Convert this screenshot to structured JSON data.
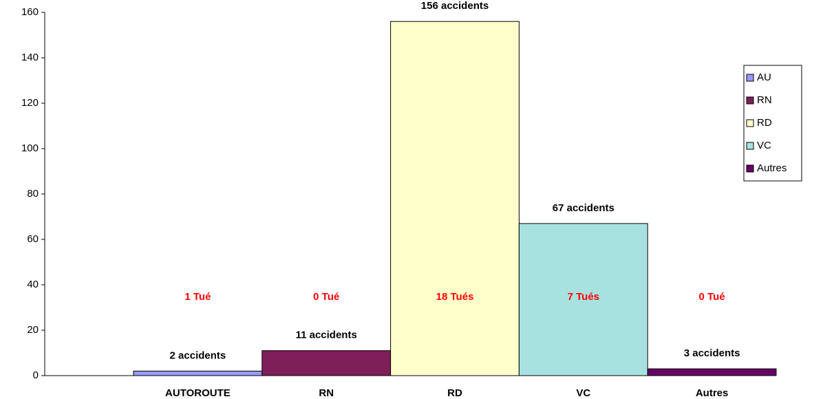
{
  "chart_data": {
    "type": "bar",
    "categories": [
      "AUTOROUTE",
      "RN",
      "RD",
      "VC",
      "Autres"
    ],
    "values": [
      2,
      11,
      156,
      67,
      3
    ],
    "value_labels": [
      "2 accidents",
      "11 accidents",
      "156 accidents",
      "67 accidents",
      "3 accidents"
    ],
    "annotations": [
      "1 Tué",
      "0 Tué",
      "18 Tués",
      "7 Tués",
      "0 Tué"
    ],
    "colors": [
      "#9999ff",
      "#7f1f5a",
      "#ffffcc",
      "#a8e2e0",
      "#660066"
    ],
    "legend": {
      "labels": [
        "AU",
        "RN",
        "RD",
        "VC",
        "Autres"
      ],
      "position": "right"
    },
    "ylim": [
      0,
      160
    ],
    "yticks": [
      0,
      20,
      40,
      60,
      80,
      100,
      120,
      140,
      160
    ]
  }
}
